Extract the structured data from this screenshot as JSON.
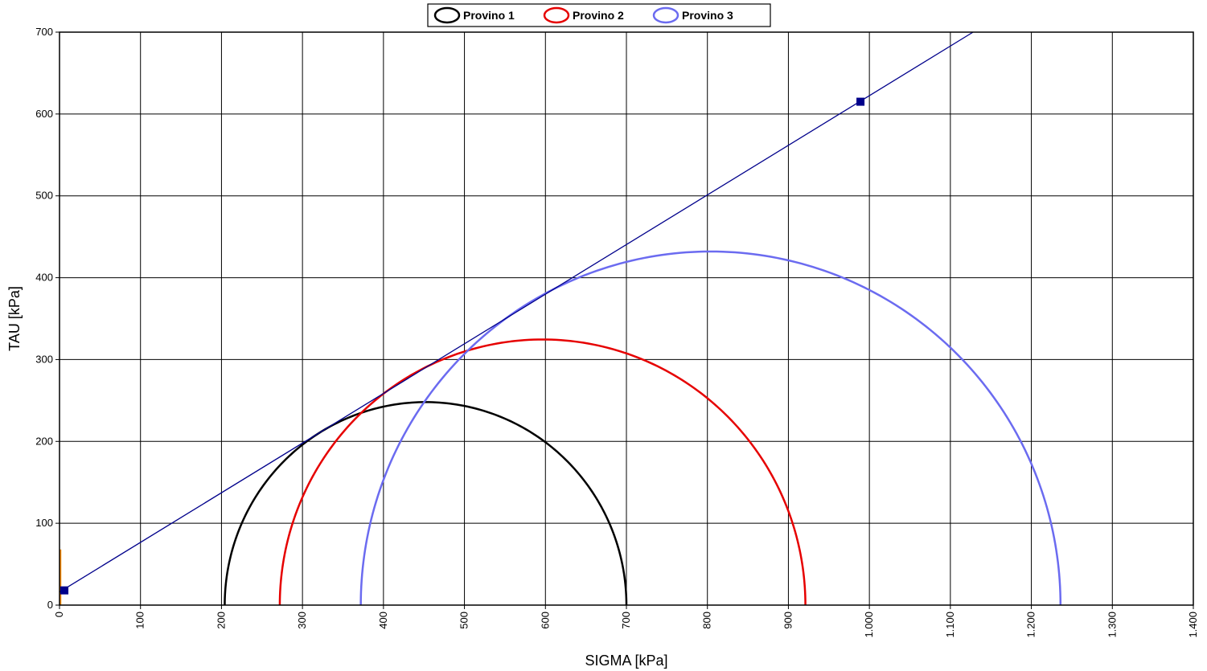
{
  "chart_data": {
    "type": "line",
    "xlabel": "SIGMA [kPa]",
    "ylabel": "TAU [kPa]",
    "xlim": [
      0,
      1400
    ],
    "ylim": [
      0,
      700
    ],
    "grid": true,
    "legend_position": "top-center",
    "x_ticks": [
      0,
      100,
      200,
      300,
      400,
      500,
      600,
      700,
      800,
      900,
      1000,
      1100,
      1200,
      1300,
      1400
    ],
    "x_tick_labels": [
      "0",
      "100",
      "200",
      "300",
      "400",
      "500",
      "600",
      "700",
      "800",
      "900",
      "1.000",
      "1.100",
      "1.200",
      "1.300",
      "1.400"
    ],
    "y_ticks": [
      0,
      100,
      200,
      300,
      400,
      500,
      600,
      700
    ],
    "y_tick_labels": [
      "0",
      "100",
      "200",
      "300",
      "400",
      "500",
      "600",
      "700"
    ],
    "series": [
      {
        "name": "Provino 1",
        "type": "mohr_circle",
        "sigma3": 204,
        "sigma1": 700,
        "color": "#000000"
      },
      {
        "name": "Provino 2",
        "type": "mohr_circle",
        "sigma3": 272,
        "sigma1": 921,
        "color": "#e60000"
      },
      {
        "name": "Provino 3",
        "type": "mohr_circle",
        "sigma3": 372,
        "sigma1": 1236,
        "color": "#6b6bf0"
      }
    ],
    "envelope": {
      "points": [
        [
          0,
          16
        ],
        [
          1128,
          700
        ]
      ],
      "markers": [
        [
          6,
          18
        ],
        [
          989,
          615
        ]
      ],
      "color": "#00008b"
    },
    "orange_mark": {
      "x": 0,
      "y_range": [
        0,
        68
      ],
      "color": "#ff8c00"
    }
  }
}
